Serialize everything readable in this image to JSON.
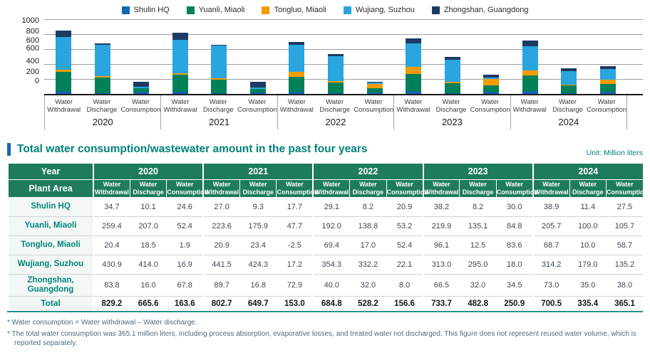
{
  "legend": {
    "items": [
      {
        "label": "Shulin HQ",
        "color": "#1766ae"
      },
      {
        "label": "Yuanli, Miaoli",
        "color": "#00815a"
      },
      {
        "label": "Tongluo, Miaoli",
        "color": "#f59b00"
      },
      {
        "label": "Wujiang, Suzhou",
        "color": "#2aa5e0"
      },
      {
        "label": "Zhongshan, Guangdong",
        "color": "#1d3a62"
      }
    ]
  },
  "chart_data": {
    "type": "bar",
    "stacked": true,
    "groups": [
      "2020",
      "2021",
      "2022",
      "2023",
      "2024"
    ],
    "measures": [
      "Water Withdrawal",
      "Water Discharge",
      "Water Consumption"
    ],
    "ylim": [
      0,
      1000
    ],
    "grid": true,
    "legend_position": "top",
    "y_axis_labels_shown": [
      "1000",
      "800",
      "600",
      "600",
      "400",
      "200",
      "0"
    ],
    "y_axis_label_positions_pct": [
      2,
      16,
      28,
      38.5,
      55.5,
      69,
      81
    ],
    "gridline_positions_pct": [
      0,
      20,
      40,
      60,
      80
    ],
    "series": [
      {
        "name": "Shulin HQ",
        "color": "#1766ae",
        "values": [
          34.7,
          10.1,
          24.6,
          27.0,
          9.3,
          17.7,
          29.1,
          8.2,
          20.9,
          38.2,
          8.2,
          30.0,
          38.9,
          11.4,
          27.5
        ]
      },
      {
        "name": "Yuanli, Miaoli",
        "color": "#00815a",
        "values": [
          259.4,
          207.0,
          52.4,
          223.6,
          175.9,
          47.7,
          192.0,
          138.8,
          53.2,
          219.9,
          135.1,
          84.8,
          205.7,
          100.0,
          105.7
        ]
      },
      {
        "name": "Tongluo, Miaoli",
        "color": "#f59b00",
        "values": [
          20.4,
          18.5,
          1.9,
          20.9,
          23.4,
          -2.5,
          69.4,
          17.0,
          52.4,
          96.1,
          12.5,
          83.6,
          68.7,
          10.0,
          58.7
        ]
      },
      {
        "name": "Wujiang, Suzhou",
        "color": "#2aa5e0",
        "values": [
          430.9,
          414.0,
          16.9,
          441.5,
          424.3,
          17.2,
          354.3,
          332.2,
          22.1,
          313.0,
          295.0,
          18.0,
          314.2,
          179.0,
          135.2
        ]
      },
      {
        "name": "Zhongshan, Guangdong",
        "color": "#1d3a62",
        "values": [
          83.8,
          16.0,
          67.8,
          89.7,
          16.8,
          72.9,
          40.0,
          32.0,
          8.0,
          66.5,
          32.0,
          34.5,
          73.0,
          35.0,
          38.0
        ]
      }
    ]
  },
  "section": {
    "title": "Total water consumption/wastewater amount in the past four years",
    "unit": "Unit: Million liters",
    "accent_color": "#1b66ad"
  },
  "table": {
    "year_header": "Year",
    "plant_header": "Plant Area",
    "years": [
      "2020",
      "2021",
      "2022",
      "2023",
      "2024"
    ],
    "sub_columns": [
      "Water Withdrawal",
      "Water Discharge",
      "Water Consumption"
    ],
    "rows": [
      {
        "plant": "Shulin HQ",
        "values": [
          "34.7",
          "10.1",
          "24.6",
          "27.0",
          "9.3",
          "17.7",
          "29.1",
          "8.2",
          "20.9",
          "38.2",
          "8.2",
          "30.0",
          "38.9",
          "11.4",
          "27.5"
        ]
      },
      {
        "plant": "Yuanli, Miaoli",
        "values": [
          "259.4",
          "207.0",
          "52.4",
          "223.6",
          "175.9",
          "47.7",
          "192.0",
          "138.8",
          "53.2",
          "219.9",
          "135.1",
          "84.8",
          "205.7",
          "100.0",
          "105.7"
        ]
      },
      {
        "plant": "Tongluo, Miaoli",
        "values": [
          "20.4",
          "18.5",
          "1.9",
          "20.9",
          "23.4",
          "-2.5",
          "69.4",
          "17.0",
          "52.4",
          "96.1",
          "12.5",
          "83.6",
          "68.7",
          "10.0",
          "58.7"
        ]
      },
      {
        "plant": "Wujiang, Suzhou",
        "values": [
          "430.9",
          "414.0",
          "16.9",
          "441.5",
          "424.3",
          "17.2",
          "354.3",
          "332.2",
          "22.1",
          "313.0",
          "295.0",
          "18.0",
          "314.2",
          "179.0",
          "135.2"
        ]
      },
      {
        "plant": "Zhongshan, Guangdong",
        "values": [
          "83.8",
          "16.0",
          "67.8",
          "89.7",
          "16.8",
          "72.9",
          "40.0",
          "32.0",
          "8.0",
          "66.5",
          "32.0",
          "34.5",
          "73.0",
          "35.0",
          "38.0"
        ]
      }
    ],
    "total": {
      "label": "Total",
      "values": [
        "829.2",
        "665.6",
        "163.6",
        "802.7",
        "649.7",
        "153.0",
        "684.8",
        "528.2",
        "156.6",
        "733.7",
        "482.8",
        "250.9",
        "700.5",
        "335.4",
        "365.1"
      ]
    }
  },
  "footnotes": [
    "* Water consumption = Water withdrawal – Water discharge.",
    "* The total water consumption was 365.1 million liters, including process absorption, evaporative losses, and treated water not discharged. This figure does not represent reused water volume, which is reported separately."
  ]
}
